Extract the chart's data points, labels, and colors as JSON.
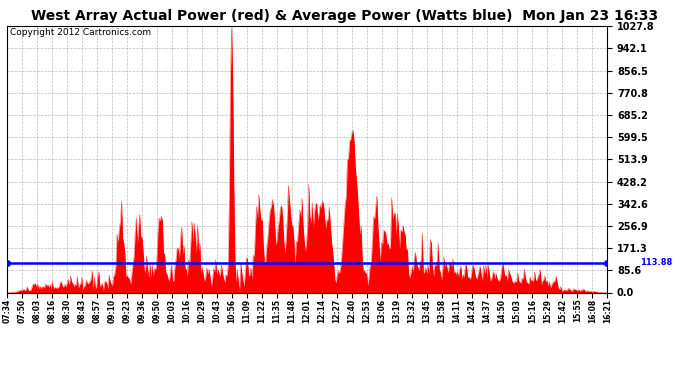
{
  "title": "West Array Actual Power (red) & Average Power (Watts blue)  Mon Jan 23 16:33",
  "copyright": "Copyright 2012 Cartronics.com",
  "avg_power": 113.88,
  "y_max": 1027.8,
  "y_ticks": [
    0.0,
    85.6,
    171.3,
    256.9,
    342.6,
    428.2,
    513.9,
    599.5,
    685.2,
    770.8,
    856.5,
    942.1,
    1027.8
  ],
  "x_labels": [
    "07:34",
    "07:50",
    "08:03",
    "08:16",
    "08:30",
    "08:43",
    "08:57",
    "09:10",
    "09:23",
    "09:36",
    "09:50",
    "10:03",
    "10:16",
    "10:29",
    "10:43",
    "10:56",
    "11:09",
    "11:22",
    "11:35",
    "11:48",
    "12:01",
    "12:14",
    "12:27",
    "12:40",
    "12:53",
    "13:06",
    "13:19",
    "13:32",
    "13:45",
    "13:58",
    "14:11",
    "14:24",
    "14:37",
    "14:50",
    "15:03",
    "15:16",
    "15:29",
    "15:42",
    "15:55",
    "16:08",
    "16:21"
  ],
  "bg_color": "#ffffff",
  "plot_bg": "#ffffff",
  "grid_color": "#aaaaaa",
  "avg_line_color": "#0000ff",
  "bar_color": "#ff0000",
  "title_fontsize": 10,
  "copyright_fontsize": 6.5,
  "ytick_fontsize": 7,
  "xtick_fontsize": 5.5
}
